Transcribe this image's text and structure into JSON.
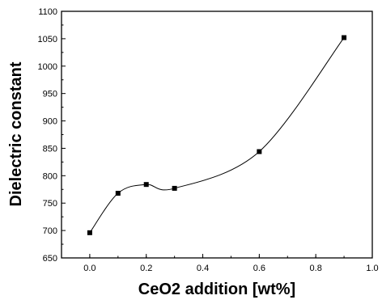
{
  "chart_data": {
    "type": "scatter",
    "title": "",
    "xlabel": "CeO2 addition [wt%]",
    "ylabel": "Dielectric constant",
    "xlim": [
      -0.1,
      1.0
    ],
    "ylim": [
      650,
      1100
    ],
    "x_ticks": [
      0.0,
      0.2,
      0.4,
      0.6,
      0.8,
      1.0
    ],
    "x_tick_labels": [
      "0.0",
      "0.2",
      "0.4",
      "0.6",
      "0.8",
      "1.0"
    ],
    "y_ticks": [
      650,
      700,
      750,
      800,
      850,
      900,
      950,
      1000,
      1050,
      1100
    ],
    "y_tick_labels": [
      "650",
      "700",
      "750",
      "800",
      "850",
      "900",
      "950",
      "1000",
      "1050",
      "1100"
    ],
    "grid": false,
    "series": [
      {
        "x": [
          0.0,
          0.1,
          0.2,
          0.3,
          0.6,
          0.9
        ],
        "y": [
          696,
          768,
          784,
          777,
          844,
          1052
        ],
        "marker": "square",
        "line": "smooth-spline",
        "color": "#000000"
      }
    ]
  }
}
